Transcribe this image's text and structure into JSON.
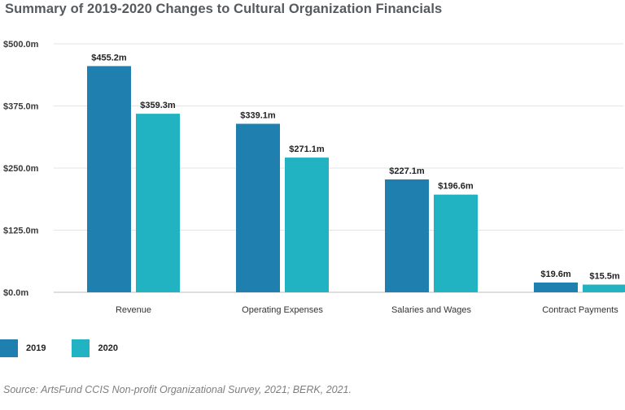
{
  "chart_data": {
    "type": "bar",
    "title": "Summary of 2019-2020 Changes to Cultural Organization Financials",
    "categories": [
      "Revenue",
      "Operating Expenses",
      "Salaries and Wages",
      "Contract Payments"
    ],
    "series": [
      {
        "name": "2019",
        "color": "#1f7fae",
        "values": [
          455.2,
          339.1,
          227.1,
          19.6
        ],
        "labels": [
          "$455.2m",
          "$339.1m",
          "$227.1m",
          "$19.6m"
        ]
      },
      {
        "name": "2020",
        "color": "#22b3c3",
        "values": [
          359.3,
          271.1,
          196.6,
          15.5
        ],
        "labels": [
          "$359.3m",
          "$271.1m",
          "$196.6m",
          "$15.5m"
        ]
      }
    ],
    "yticks": [
      0,
      125,
      250,
      375,
      500
    ],
    "ytick_labels": [
      "$0.0m",
      "$125.0m",
      "$250.0m",
      "$375.0m",
      "$500.0m"
    ],
    "ylim": [
      0,
      500
    ],
    "grid": true,
    "legend_position": "bottom-left"
  },
  "source": "Source: ArtsFund CCIS Non-profit Organizational Survey, 2021; BERK, 2021."
}
